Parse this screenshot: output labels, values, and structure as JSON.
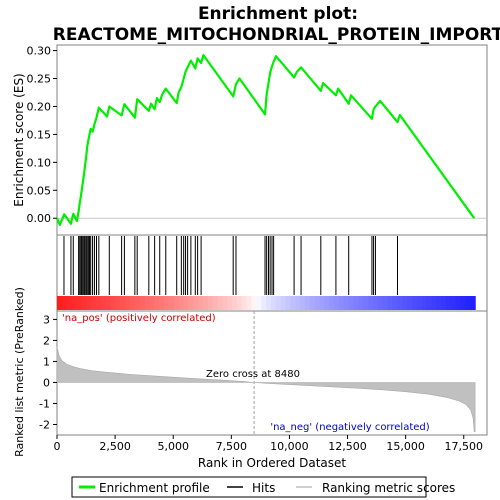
{
  "chart_data": {
    "type": "line",
    "title_line1": "Enrichment plot:",
    "title_line2": "REACTOME_MITOCHONDRIAL_PROTEIN_IMPORT",
    "es_panel": {
      "ylabel": "Enrichment score (ES)",
      "ylim": [
        -0.03,
        0.31
      ],
      "yticks": [
        0.0,
        0.05,
        0.1,
        0.15,
        0.2,
        0.25,
        0.3
      ],
      "ytick_labels": [
        "0.00",
        "0.05",
        "0.10",
        "0.15",
        "0.20",
        "0.25",
        "0.30"
      ],
      "series_name": "Enrichment profile",
      "color": "#00ee00",
      "points": [
        [
          0,
          0.0
        ],
        [
          120,
          -0.012
        ],
        [
          310,
          0.007
        ],
        [
          600,
          -0.01
        ],
        [
          700,
          0.008
        ],
        [
          850,
          -0.005
        ],
        [
          930,
          0.012
        ],
        [
          980,
          0.028
        ],
        [
          1030,
          0.04
        ],
        [
          1070,
          0.052
        ],
        [
          1120,
          0.066
        ],
        [
          1170,
          0.082
        ],
        [
          1210,
          0.095
        ],
        [
          1260,
          0.112
        ],
        [
          1300,
          0.128
        ],
        [
          1350,
          0.14
        ],
        [
          1400,
          0.15
        ],
        [
          1450,
          0.16
        ],
        [
          1530,
          0.155
        ],
        [
          1610,
          0.168
        ],
        [
          1700,
          0.18
        ],
        [
          1800,
          0.198
        ],
        [
          2150,
          0.182
        ],
        [
          2250,
          0.2
        ],
        [
          2780,
          0.184
        ],
        [
          2900,
          0.204
        ],
        [
          3350,
          0.18
        ],
        [
          3450,
          0.213
        ],
        [
          3950,
          0.192
        ],
        [
          4050,
          0.205
        ],
        [
          4200,
          0.195
        ],
        [
          4300,
          0.215
        ],
        [
          4420,
          0.208
        ],
        [
          4530,
          0.222
        ],
        [
          4680,
          0.232
        ],
        [
          5150,
          0.206
        ],
        [
          5230,
          0.225
        ],
        [
          5350,
          0.235
        ],
        [
          5450,
          0.25
        ],
        [
          5530,
          0.262
        ],
        [
          5620,
          0.27
        ],
        [
          5760,
          0.282
        ],
        [
          5950,
          0.268
        ],
        [
          6050,
          0.286
        ],
        [
          6200,
          0.278
        ],
        [
          6300,
          0.292
        ],
        [
          7580,
          0.218
        ],
        [
          7700,
          0.24
        ],
        [
          7850,
          0.25
        ],
        [
          8950,
          0.186
        ],
        [
          9020,
          0.222
        ],
        [
          9100,
          0.242
        ],
        [
          9170,
          0.26
        ],
        [
          9250,
          0.272
        ],
        [
          9320,
          0.28
        ],
        [
          9420,
          0.29
        ],
        [
          10200,
          0.252
        ],
        [
          10320,
          0.262
        ],
        [
          10500,
          0.27
        ],
        [
          11350,
          0.228
        ],
        [
          11450,
          0.242
        ],
        [
          12000,
          0.22
        ],
        [
          12100,
          0.232
        ],
        [
          12550,
          0.205
        ],
        [
          12650,
          0.22
        ],
        [
          13550,
          0.178
        ],
        [
          13620,
          0.195
        ],
        [
          13700,
          0.2
        ],
        [
          13900,
          0.21
        ],
        [
          14650,
          0.172
        ],
        [
          14750,
          0.185
        ],
        [
          17950,
          0.0
        ]
      ]
    },
    "hits": {
      "label": "Hits",
      "positions": [
        300,
        600,
        700,
        930,
        980,
        1030,
        1070,
        1120,
        1170,
        1210,
        1260,
        1300,
        1350,
        1400,
        1450,
        1530,
        1610,
        1700,
        1800,
        2250,
        2780,
        2900,
        3350,
        3450,
        3950,
        4200,
        4420,
        4680,
        5150,
        5350,
        5450,
        5530,
        5620,
        5760,
        5950,
        6050,
        6200,
        7580,
        7700,
        8950,
        9020,
        9100,
        9170,
        9250,
        9320,
        10200,
        10500,
        11350,
        12000,
        12550,
        13550,
        13620,
        13700,
        14650
      ]
    },
    "ranked_metric": {
      "ylabel": "Ranked list metric (PreRanked)",
      "ylim": [
        -2.5,
        3.4
      ],
      "yticks": [
        -2,
        -1,
        0,
        1,
        2,
        3
      ],
      "ytick_labels": [
        "-2",
        "-1",
        "0",
        "1",
        "2",
        "3"
      ],
      "series_name": "Ranking metric scores",
      "color": "#c0c0c0",
      "points": [
        [
          0,
          1.7
        ],
        [
          80,
          1.3
        ],
        [
          200,
          1.05
        ],
        [
          400,
          0.88
        ],
        [
          700,
          0.75
        ],
        [
          1000,
          0.66
        ],
        [
          1500,
          0.56
        ],
        [
          2000,
          0.5
        ],
        [
          3000,
          0.4
        ],
        [
          4000,
          0.32
        ],
        [
          5000,
          0.25
        ],
        [
          6000,
          0.18
        ],
        [
          7000,
          0.12
        ],
        [
          8000,
          0.05
        ],
        [
          8480,
          0.0
        ],
        [
          9000,
          -0.04
        ],
        [
          10000,
          -0.1
        ],
        [
          11000,
          -0.16
        ],
        [
          12000,
          -0.22
        ],
        [
          13000,
          -0.28
        ],
        [
          14000,
          -0.35
        ],
        [
          15000,
          -0.44
        ],
        [
          16000,
          -0.56
        ],
        [
          16800,
          -0.72
        ],
        [
          17300,
          -0.88
        ],
        [
          17600,
          -1.05
        ],
        [
          17800,
          -1.3
        ],
        [
          17900,
          -1.7
        ],
        [
          17950,
          -2.35
        ],
        [
          17990,
          -2.35
        ]
      ],
      "zero_cross_label": "Zero cross at 8480",
      "zero_cross": 8480,
      "pos_label": "'na_pos' (positively correlated)",
      "neg_label": "'na_neg' (negatively correlated)"
    },
    "xaxis": {
      "xlabel": "Rank in Ordered Dataset",
      "xlim": [
        0,
        18500
      ],
      "xticks": [
        0,
        2500,
        5000,
        7500,
        10000,
        12500,
        15000,
        17500
      ],
      "xtick_labels": [
        "0",
        "2,500",
        "5,000",
        "7,500",
        "10,000",
        "12,500",
        "15,000",
        "17,500"
      ]
    },
    "legend": {
      "placement": "bottom",
      "entries": [
        {
          "label": "Enrichment profile",
          "color": "#00ee00"
        },
        {
          "label": "Hits",
          "color": "#000000"
        },
        {
          "label": "Ranking metric scores",
          "color": "#c0c0c0"
        }
      ]
    }
  }
}
